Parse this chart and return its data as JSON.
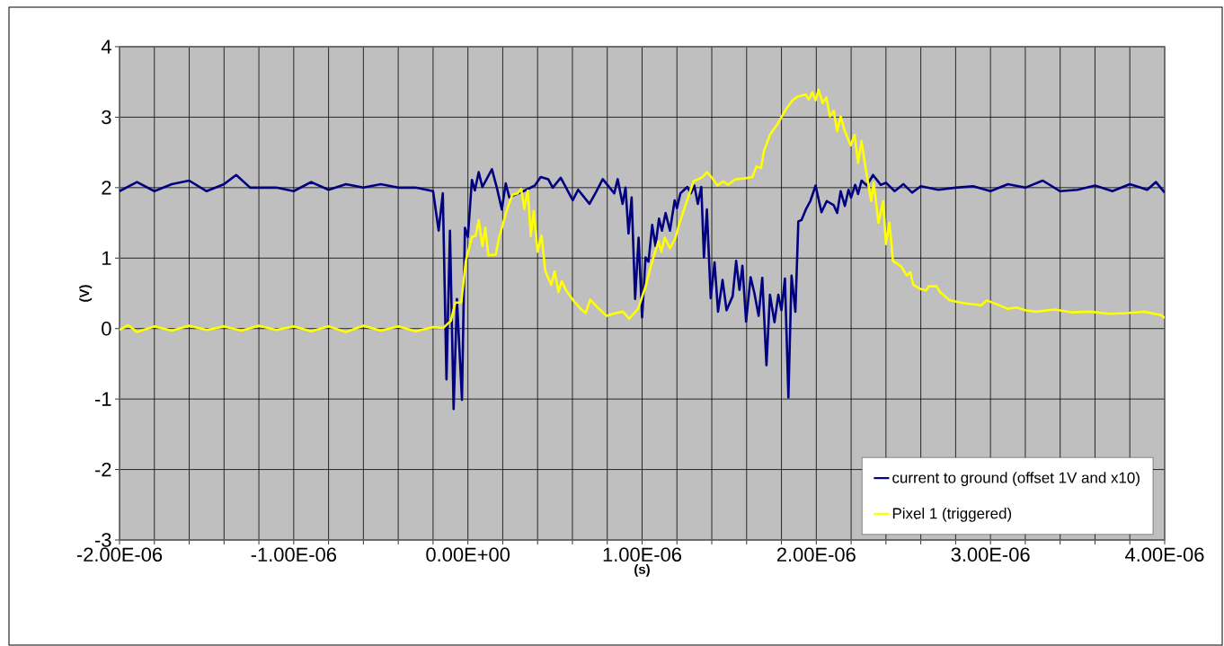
{
  "chart_data": {
    "type": "line",
    "xlabel": "(s)",
    "ylabel": "(V)",
    "xlim": [
      -2e-06,
      4e-06
    ],
    "ylim": [
      -3,
      4
    ],
    "xticks": [
      {
        "value": -2e-06,
        "label": "-2.00E-06"
      },
      {
        "value": -1.8e-06,
        "label": null
      },
      {
        "value": -1.6e-06,
        "label": null
      },
      {
        "value": -1.4e-06,
        "label": null
      },
      {
        "value": -1.2e-06,
        "label": null
      },
      {
        "value": -1e-06,
        "label": "-1.00E-06"
      },
      {
        "value": -8e-07,
        "label": null
      },
      {
        "value": -6e-07,
        "label": null
      },
      {
        "value": -4e-07,
        "label": null
      },
      {
        "value": -2e-07,
        "label": null
      },
      {
        "value": 0,
        "label": "0.00E+00"
      },
      {
        "value": 2e-07,
        "label": null
      },
      {
        "value": 4e-07,
        "label": null
      },
      {
        "value": 6e-07,
        "label": null
      },
      {
        "value": 8e-07,
        "label": null
      },
      {
        "value": 1e-06,
        "label": "1.00E-06"
      },
      {
        "value": 1.2e-06,
        "label": null
      },
      {
        "value": 1.4e-06,
        "label": null
      },
      {
        "value": 1.6e-06,
        "label": null
      },
      {
        "value": 1.8e-06,
        "label": null
      },
      {
        "value": 2e-06,
        "label": "2.00E-06"
      },
      {
        "value": 2.2e-06,
        "label": null
      },
      {
        "value": 2.4e-06,
        "label": null
      },
      {
        "value": 2.6e-06,
        "label": null
      },
      {
        "value": 2.8e-06,
        "label": null
      },
      {
        "value": 3e-06,
        "label": "3.00E-06"
      },
      {
        "value": 3.2e-06,
        "label": null
      },
      {
        "value": 3.4e-06,
        "label": null
      },
      {
        "value": 3.6e-06,
        "label": null
      },
      {
        "value": 3.8e-06,
        "label": null
      },
      {
        "value": 4e-06,
        "label": "4.00E-06"
      }
    ],
    "yticks": [
      -3,
      -2,
      -1,
      0,
      1,
      2,
      3,
      4
    ],
    "grid": true,
    "legend": "bottom right",
    "series": [
      {
        "name": "current to ground (offset 1V and x10)",
        "color": "#000080",
        "x": [
          -2e-06,
          -1.9e-06,
          -1.8e-06,
          -1.7e-06,
          -1.6e-06,
          -1.5e-06,
          -1.4e-06,
          -1.33e-06,
          -1.25e-06,
          -1.1e-06,
          -1e-06,
          -9e-07,
          -8e-07,
          -7e-07,
          -6e-07,
          -5e-07,
          -4e-07,
          -3e-07,
          -2e-07,
          -1.68e-07,
          -1.44e-07,
          -1.23e-07,
          -1.03e-07,
          -8.2e-08,
          -6.3e-08,
          -3.4e-08,
          -1.7e-08,
          0,
          2.3e-08,
          4e-08,
          6.2e-08,
          8.3e-08,
          1.38e-07,
          1.66e-07,
          1.95e-07,
          2.17e-07,
          2.38e-07,
          2.7e-07,
          3.2e-07,
          3.84e-07,
          4.18e-07,
          4.61e-07,
          4.87e-07,
          5.33e-07,
          6.02e-07,
          6.33e-07,
          6.98e-07,
          7.36e-07,
          7.74e-07,
          8.4e-07,
          8.6e-07,
          8.88e-07,
          9.05e-07,
          9.22e-07,
          9.4e-07,
          9.6e-07,
          9.8e-07,
          1e-06,
          1.02e-06,
          1.037e-06,
          1.058e-06,
          1.077e-06,
          1.097e-06,
          1.114e-06,
          1.135e-06,
          1.16e-06,
          1.187e-06,
          1.2e-06,
          1.22e-06,
          1.26e-06,
          1.28e-06,
          1.3e-06,
          1.32e-06,
          1.34e-06,
          1.355e-06,
          1.372e-06,
          1.394e-06,
          1.416e-06,
          1.436e-06,
          1.462e-06,
          1.485e-06,
          1.52e-06,
          1.54e-06,
          1.559e-06,
          1.576e-06,
          1.597e-06,
          1.623e-06,
          1.645e-06,
          1.669e-06,
          1.69e-06,
          1.714e-06,
          1.734e-06,
          1.76e-06,
          1.782e-06,
          1.8e-06,
          1.82e-06,
          1.84e-06,
          1.858e-06,
          1.88e-06,
          1.897e-06,
          1.915e-06,
          1.94e-06,
          1.966e-06,
          1.996e-06,
          2.03e-06,
          2.06e-06,
          2.1e-06,
          2.12e-06,
          2.14e-06,
          2.164e-06,
          2.185e-06,
          2.2e-06,
          2.223e-06,
          2.24e-06,
          2.26e-06,
          2.29e-06,
          2.326e-06,
          2.37e-06,
          2.4e-06,
          2.45e-06,
          2.5e-06,
          2.55e-06,
          2.6e-06,
          2.7e-06,
          2.8e-06,
          2.9e-06,
          3e-06,
          3.1e-06,
          3.2e-06,
          3.3e-06,
          3.4e-06,
          3.5e-06,
          3.6e-06,
          3.7e-06,
          3.8e-06,
          3.9e-06,
          3.95e-06,
          4e-06
        ],
        "values": [
          1.95,
          2.08,
          1.95,
          2.05,
          2.1,
          1.95,
          2.05,
          2.18,
          2.0,
          2.0,
          1.95,
          2.08,
          1.97,
          2.05,
          2.0,
          2.05,
          2.0,
          2.0,
          1.95,
          1.39,
          1.92,
          -0.72,
          1.39,
          -1.14,
          0.42,
          -1.01,
          1.43,
          1.3,
          2.11,
          1.96,
          2.22,
          2.01,
          2.26,
          2.0,
          1.69,
          2.06,
          1.86,
          1.9,
          1.95,
          2.03,
          2.15,
          2.12,
          2.0,
          2.14,
          1.82,
          1.97,
          1.77,
          1.94,
          2.12,
          1.92,
          2.12,
          1.77,
          2.0,
          1.35,
          1.86,
          0.42,
          1.29,
          0.16,
          1.01,
          0.95,
          1.47,
          1.17,
          1.56,
          1.39,
          1.64,
          1.39,
          1.82,
          1.71,
          1.92,
          2.01,
          1.92,
          2.03,
          1.77,
          2.01,
          1.01,
          1.69,
          0.43,
          0.94,
          0.24,
          0.69,
          0.26,
          0.46,
          0.96,
          0.55,
          0.89,
          0.1,
          0.73,
          0.5,
          0.18,
          0.72,
          -0.52,
          0.48,
          0.09,
          0.48,
          0.26,
          0.71,
          -0.98,
          0.75,
          0.24,
          1.52,
          1.54,
          1.69,
          1.81,
          2.03,
          1.65,
          1.81,
          1.75,
          1.64,
          1.95,
          1.74,
          1.97,
          1.86,
          2.04,
          1.91,
          2.1,
          2.03,
          2.18,
          2.04,
          2.07,
          1.95,
          2.05,
          1.93,
          2.02,
          1.97,
          2.0,
          2.02,
          1.95,
          2.05,
          2.0,
          2.1,
          1.95,
          1.97,
          2.03,
          1.95,
          2.05,
          1.97,
          2.08,
          1.93
        ]
      },
      {
        "name": "Pixel 1 (triggered)",
        "color": "#ffff00",
        "x": [
          -2e-06,
          -1.95e-06,
          -1.9e-06,
          -1.8e-06,
          -1.7e-06,
          -1.6e-06,
          -1.5e-06,
          -1.4e-06,
          -1.3e-06,
          -1.2e-06,
          -1.1e-06,
          -1e-06,
          -9e-07,
          -8e-07,
          -7e-07,
          -6e-07,
          -5e-07,
          -4e-07,
          -3e-07,
          -2e-07,
          -1.41e-07,
          -9.8e-08,
          -7.2e-08,
          -3.8e-08,
          -1.2e-08,
          2.3e-08,
          4.5e-08,
          6.2e-08,
          8.3e-08,
          1e-07,
          1.17e-07,
          1.6e-07,
          1.8e-07,
          2.22e-07,
          2.55e-07,
          2.86e-07,
          3.06e-07,
          3.24e-07,
          3.44e-07,
          3.61e-07,
          3.78e-07,
          4e-07,
          4.23e-07,
          4.44e-07,
          4.78e-07,
          4.98e-07,
          5.2e-07,
          5.39e-07,
          5.64e-07,
          6.02e-07,
          6.47e-07,
          6.76e-07,
          7.02e-07,
          7.44e-07,
          7.97e-07,
          8.48e-07,
          8.9e-07,
          9.26e-07,
          9.77e-07,
          1.02e-06,
          1.054e-06,
          1.094e-06,
          1.11e-06,
          1.13e-06,
          1.16e-06,
          1.19e-06,
          1.215e-06,
          1.257e-06,
          1.296e-06,
          1.347e-06,
          1.372e-06,
          1.398e-06,
          1.433e-06,
          1.467e-06,
          1.493e-06,
          1.536e-06,
          1.588e-06,
          1.634e-06,
          1.657e-06,
          1.683e-06,
          1.7e-06,
          1.734e-06,
          1.782e-06,
          1.82e-06,
          1.864e-06,
          1.892e-06,
          1.94e-06,
          1.957e-06,
          1.978e-06,
          1.996e-06,
          2.013e-06,
          2.036e-06,
          2.058e-06,
          2.078e-06,
          2.1e-06,
          2.12e-06,
          2.14e-06,
          2.164e-06,
          2.198e-06,
          2.22e-06,
          2.24e-06,
          2.26e-06,
          2.28e-06,
          2.315e-06,
          2.33e-06,
          2.357e-06,
          2.384e-06,
          2.4e-06,
          2.42e-06,
          2.44e-06,
          2.488e-06,
          2.52e-06,
          2.54e-06,
          2.557e-06,
          2.6e-06,
          2.63e-06,
          2.646e-06,
          2.69e-06,
          2.71e-06,
          2.765e-06,
          2.85e-06,
          2.946e-06,
          2.98e-06,
          3.05e-06,
          3.1e-06,
          3.15e-06,
          3.2e-06,
          3.26e-06,
          3.37e-06,
          3.47e-06,
          3.57e-06,
          3.68e-06,
          3.78e-06,
          3.88e-06,
          3.98e-06,
          4e-06
        ],
        "values": [
          -0.02,
          0.05,
          -0.05,
          0.03,
          -0.03,
          0.04,
          -0.02,
          0.03,
          -0.03,
          0.04,
          -0.02,
          0.03,
          -0.04,
          0.03,
          -0.05,
          0.04,
          -0.03,
          0.03,
          -0.04,
          0.02,
          0.01,
          0.11,
          0.37,
          0.37,
          0.96,
          1.3,
          1.32,
          1.54,
          1.17,
          1.43,
          1.04,
          1.05,
          1.3,
          1.67,
          1.9,
          1.92,
          1.98,
          1.7,
          1.96,
          1.31,
          1.67,
          1.09,
          1.32,
          0.82,
          0.62,
          0.81,
          0.52,
          0.67,
          0.54,
          0.41,
          0.28,
          0.22,
          0.41,
          0.3,
          0.18,
          0.22,
          0.24,
          0.14,
          0.28,
          0.6,
          0.92,
          1.24,
          1.09,
          1.29,
          1.14,
          1.28,
          1.5,
          1.81,
          2.09,
          2.15,
          2.22,
          2.15,
          2.03,
          2.09,
          2.04,
          2.12,
          2.13,
          2.15,
          2.3,
          2.28,
          2.52,
          2.75,
          2.92,
          3.09,
          3.24,
          3.29,
          3.32,
          3.25,
          3.35,
          3.24,
          3.39,
          3.2,
          3.28,
          3.01,
          3.09,
          2.8,
          3.01,
          2.8,
          2.6,
          2.75,
          2.35,
          2.66,
          2.33,
          1.81,
          2.07,
          1.5,
          1.81,
          1.2,
          1.5,
          0.96,
          0.88,
          0.75,
          0.8,
          0.62,
          0.56,
          0.54,
          0.6,
          0.6,
          0.52,
          0.4,
          0.36,
          0.33,
          0.4,
          0.33,
          0.28,
          0.3,
          0.26,
          0.24,
          0.27,
          0.23,
          0.24,
          0.21,
          0.22,
          0.24,
          0.19,
          0.15
        ]
      }
    ]
  }
}
